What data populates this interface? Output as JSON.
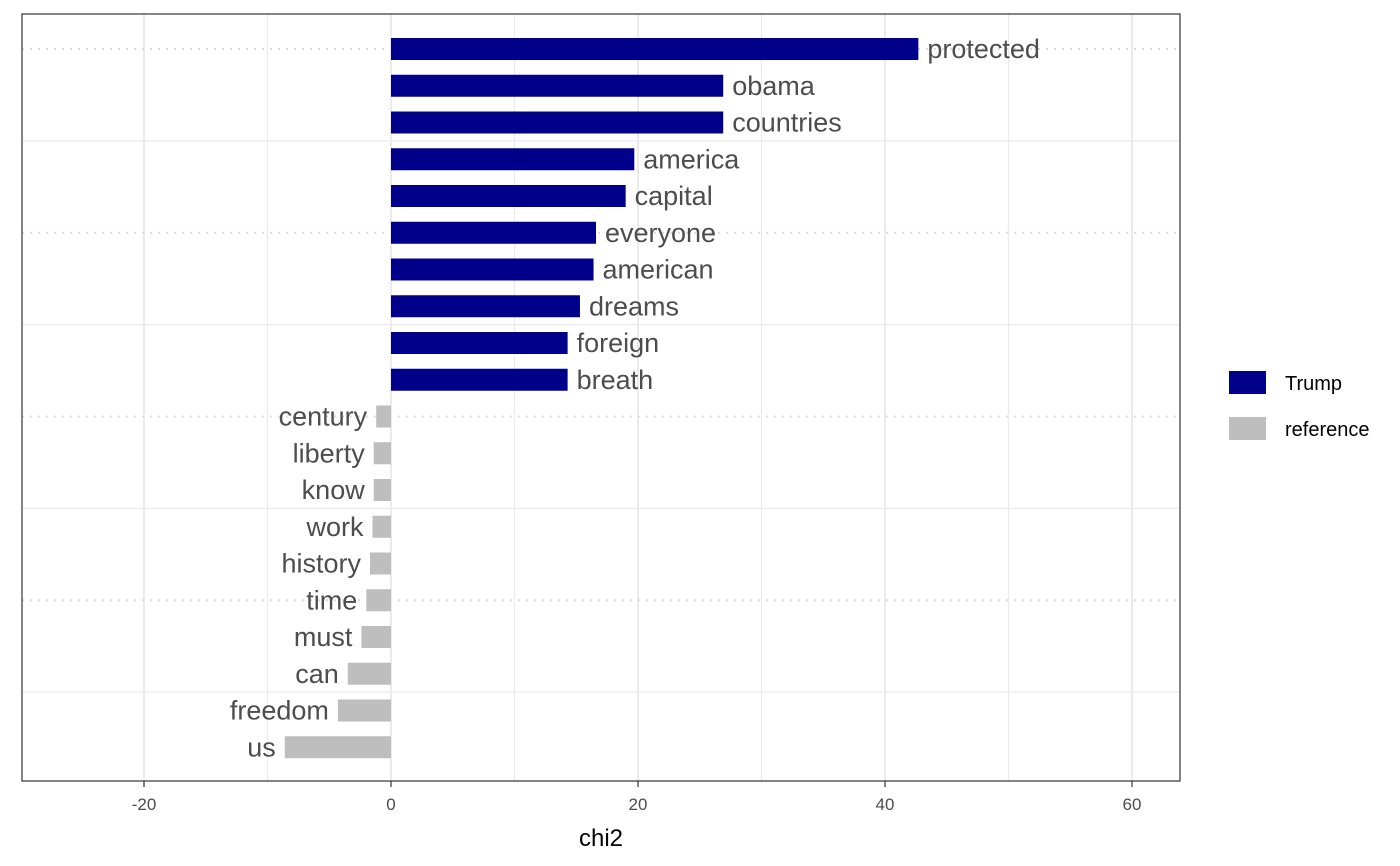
{
  "chart_data": {
    "type": "bar",
    "orientation": "horizontal",
    "xlabel": "chi2",
    "ylabel": "",
    "xlim": [
      -30,
      64
    ],
    "x_ticks": [
      -20,
      0,
      20,
      40,
      60
    ],
    "grid": true,
    "legend_position": "right",
    "series": [
      {
        "name": "Trump",
        "color": "#00008b"
      },
      {
        "name": "reference",
        "color": "#bebebe"
      }
    ],
    "categories": [
      "protected",
      "obama",
      "countries",
      "america",
      "capital",
      "everyone",
      "american",
      "dreams",
      "foreign",
      "breath",
      "century",
      "liberty",
      "know",
      "work",
      "history",
      "time",
      "must",
      "can",
      "freedom",
      "us"
    ],
    "values": [
      42.7,
      26.9,
      26.9,
      19.7,
      19.0,
      16.6,
      16.4,
      15.3,
      14.3,
      14.3,
      -1.2,
      -1.4,
      -1.4,
      -1.5,
      -1.7,
      -2.0,
      -2.4,
      -3.5,
      -4.3,
      -8.6
    ],
    "groups": [
      "Trump",
      "Trump",
      "Trump",
      "Trump",
      "Trump",
      "Trump",
      "Trump",
      "Trump",
      "Trump",
      "Trump",
      "reference",
      "reference",
      "reference",
      "reference",
      "reference",
      "reference",
      "reference",
      "reference",
      "reference",
      "reference"
    ]
  }
}
